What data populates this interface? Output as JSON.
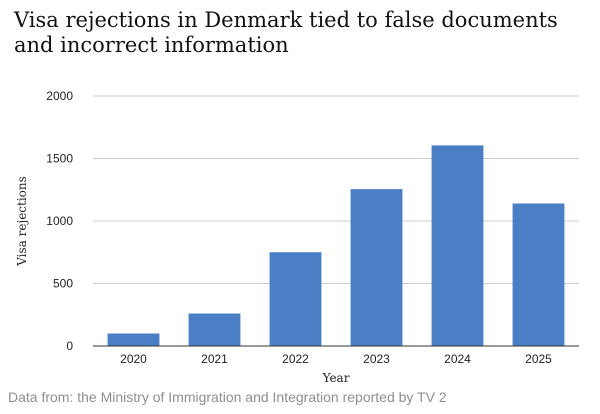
{
  "chart_data": {
    "type": "bar",
    "title": "Visa rejections in Denmark tied to false documents and incorrect information",
    "xlabel": "Year",
    "ylabel": "Visa rejections",
    "categories": [
      "2020",
      "2021",
      "2022",
      "2023",
      "2024",
      "2025"
    ],
    "values": [
      100,
      260,
      750,
      1255,
      1605,
      1140
    ],
    "ylim": [
      0,
      2000
    ],
    "yticks": [
      0,
      500,
      1000,
      1500,
      2000
    ],
    "grid": true,
    "bar_color": "#4a7fc6",
    "grid_color": "#cccccc"
  },
  "source": "Data from: the Ministry of Immigration and Integration reported by TV 2"
}
